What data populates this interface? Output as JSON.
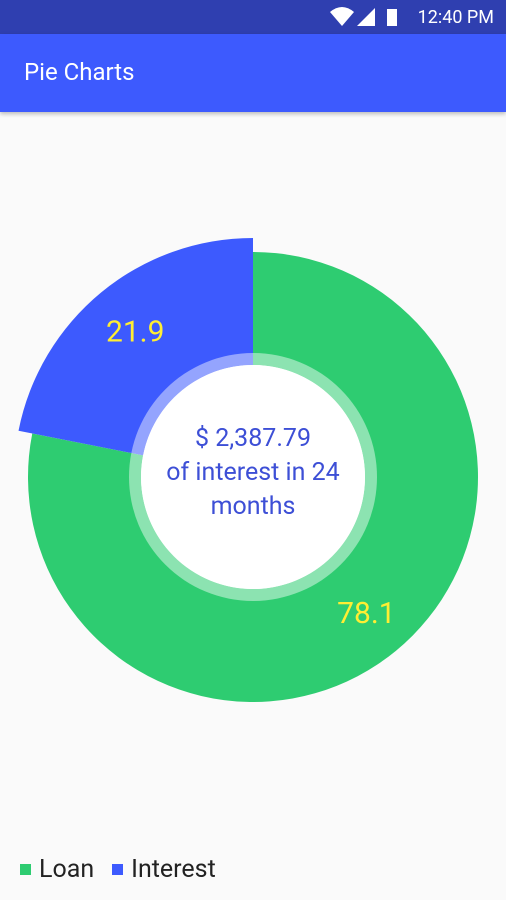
{
  "status_bar": {
    "time": "12:40 PM"
  },
  "app_bar": {
    "title": "Pie Charts"
  },
  "chart_data": {
    "type": "pie",
    "categories": [
      "Loan",
      "Interest"
    ],
    "values": [
      78.1,
      21.9
    ],
    "colors": [
      "#2ecc71",
      "#3d5afe"
    ],
    "selected": 1,
    "center_text": [
      "$ 2,387.79",
      "of interest in 24 months"
    ],
    "legend": "bottom-left"
  }
}
